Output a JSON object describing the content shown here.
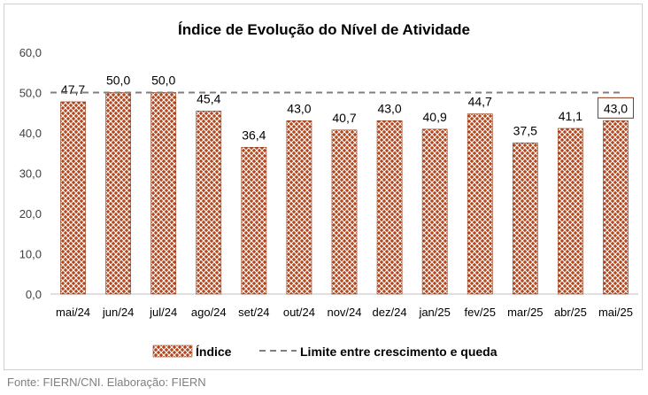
{
  "chart_data": {
    "type": "bar",
    "title": "Índice de Evolução do Nível de Atividade",
    "categories": [
      "mai/24",
      "jun/24",
      "jul/24",
      "ago/24",
      "set/24",
      "out/24",
      "nov/24",
      "dez/24",
      "jan/25",
      "fev/25",
      "mar/25",
      "abr/25",
      "mai/25"
    ],
    "series": [
      {
        "name": "Índice",
        "values": [
          47.7,
          50.0,
          50.0,
          45.4,
          36.4,
          43.0,
          40.7,
          43.0,
          40.9,
          44.7,
          37.5,
          41.1,
          43.0
        ],
        "labels": [
          "47,7",
          "50,0",
          "50,0",
          "45,4",
          "36,4",
          "43,0",
          "40,7",
          "43,0",
          "40,9",
          "44,7",
          "37,5",
          "41,1",
          "43,0"
        ],
        "color": "#b5451b",
        "pattern": "crosshatch"
      }
    ],
    "reference_line": {
      "name": "Limite entre crescimento e queda",
      "value": 50,
      "color": "#7f7f7f",
      "style": "dashed"
    },
    "ylim": [
      0,
      60
    ],
    "yticks": [
      0,
      10,
      20,
      30,
      40,
      50,
      60
    ],
    "ytick_labels": [
      "0,0",
      "10,0",
      "20,0",
      "30,0",
      "40,0",
      "50,0",
      "60,0"
    ],
    "highlighted_label_index": 12,
    "grid": false,
    "legend": "bottom-center"
  },
  "source_note": "Fonte: FIERN/CNI. Elaboração: FIERN"
}
